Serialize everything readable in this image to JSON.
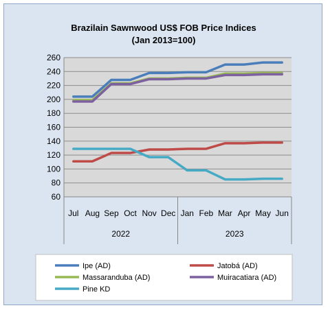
{
  "chart_data": {
    "type": "line",
    "title": "Brazilain Sawnwood US$ FOB Price Indices",
    "subtitle": "(Jan 2013=100)",
    "xlabel": "",
    "ylabel": "",
    "ylim": [
      60,
      260
    ],
    "ytick_step": 20,
    "grid": "horizontal",
    "legend_position": "bottom",
    "categories": [
      "Jul",
      "Aug",
      "Sep",
      "Oct",
      "Nov",
      "Dec",
      "Jan",
      "Feb",
      "Mar",
      "Apr",
      "May",
      "Jun"
    ],
    "category_groups": [
      {
        "label": "2022",
        "span": 6
      },
      {
        "label": "2023",
        "span": 6
      }
    ],
    "series": [
      {
        "name": "Ipe (AD)",
        "color": "#4a7ebb",
        "values": [
          204,
          204,
          228,
          228,
          238,
          238,
          239,
          239,
          250,
          250,
          253,
          253
        ]
      },
      {
        "name": "Jatobá (AD)",
        "color": "#be4b48",
        "values": [
          111,
          111,
          123,
          123,
          128,
          128,
          129,
          129,
          137,
          137,
          138,
          138
        ]
      },
      {
        "name": "Massaranduba (AD)",
        "color": "#98b954",
        "values": [
          199,
          199,
          223,
          223,
          230,
          230,
          231,
          231,
          237,
          237,
          238,
          238
        ]
      },
      {
        "name": "Muiracatiara (AD)",
        "color": "#7d60a0",
        "values": [
          197,
          197,
          222,
          222,
          229,
          229,
          230,
          230,
          235,
          235,
          236,
          236
        ]
      },
      {
        "name": "Pine KD",
        "color": "#46aac5",
        "values": [
          129,
          129,
          129,
          129,
          117,
          117,
          98,
          98,
          85,
          85,
          86,
          86
        ]
      }
    ]
  }
}
